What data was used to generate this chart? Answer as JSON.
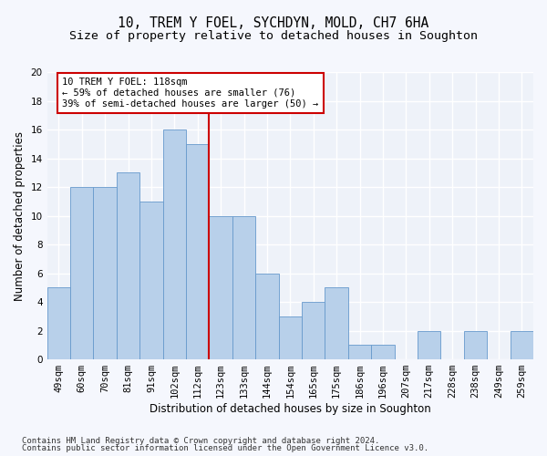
{
  "title1": "10, TREM Y FOEL, SYCHDYN, MOLD, CH7 6HA",
  "title2": "Size of property relative to detached houses in Soughton",
  "xlabel": "Distribution of detached houses by size in Soughton",
  "ylabel": "Number of detached properties",
  "categories": [
    "49sqm",
    "60sqm",
    "70sqm",
    "81sqm",
    "91sqm",
    "102sqm",
    "112sqm",
    "123sqm",
    "133sqm",
    "144sqm",
    "154sqm",
    "165sqm",
    "175sqm",
    "186sqm",
    "196sqm",
    "207sqm",
    "217sqm",
    "228sqm",
    "238sqm",
    "249sqm",
    "259sqm"
  ],
  "values": [
    5,
    12,
    12,
    13,
    11,
    16,
    15,
    10,
    10,
    6,
    3,
    4,
    5,
    1,
    1,
    0,
    2,
    0,
    2,
    0,
    2
  ],
  "bar_color": "#b8d0ea",
  "bar_edge_color": "#6699cc",
  "vline_index": 6,
  "annotation_text": "10 TREM Y FOEL: 118sqm\n← 59% of detached houses are smaller (76)\n39% of semi-detached houses are larger (50) →",
  "annotation_box_color": "#ffffff",
  "annotation_box_edge_color": "#cc0000",
  "vline_color": "#cc0000",
  "ylim": [
    0,
    20
  ],
  "yticks": [
    0,
    2,
    4,
    6,
    8,
    10,
    12,
    14,
    16,
    18,
    20
  ],
  "footer1": "Contains HM Land Registry data © Crown copyright and database right 2024.",
  "footer2": "Contains public sector information licensed under the Open Government Licence v3.0.",
  "bg_color": "#eef2f9",
  "grid_color": "#ffffff",
  "title1_fontsize": 10.5,
  "title2_fontsize": 9.5,
  "xlabel_fontsize": 8.5,
  "ylabel_fontsize": 8.5,
  "tick_fontsize": 7.5,
  "annotation_fontsize": 7.5,
  "footer_fontsize": 6.5
}
